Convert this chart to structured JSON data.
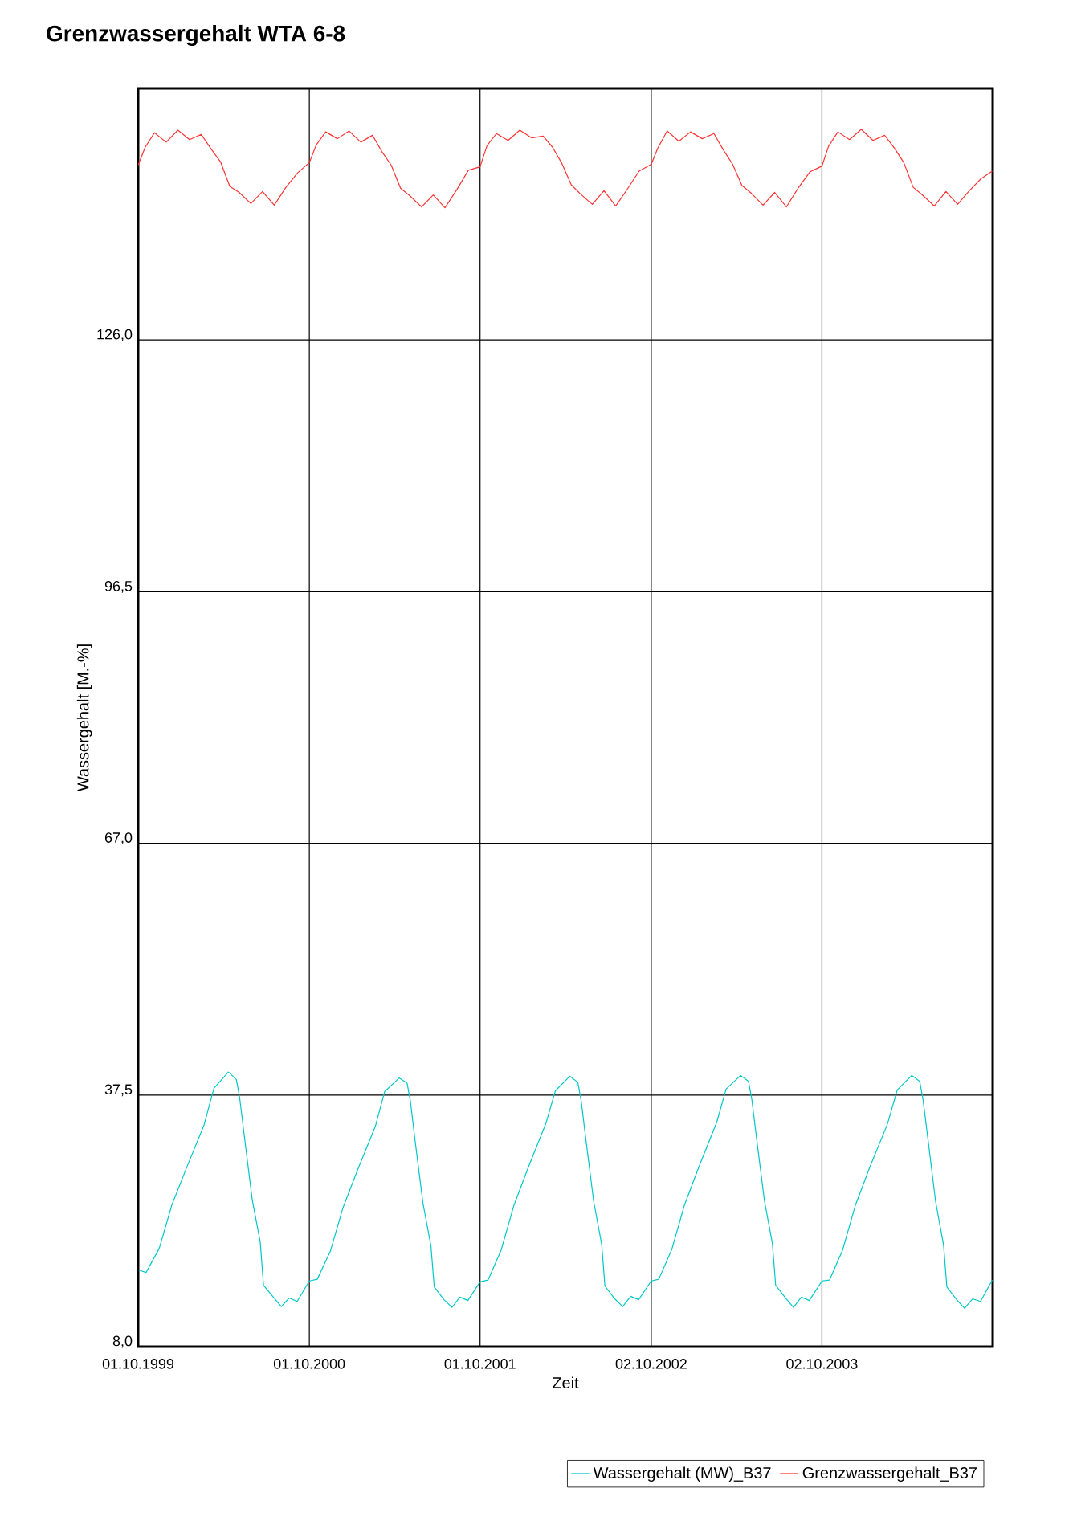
{
  "chart_data": {
    "type": "line",
    "title": "Grenzwassergehalt WTA 6-8",
    "xlabel": "Zeit",
    "ylabel": "Wassergehalt [M.-%]",
    "xlim": [
      "1999-10-01",
      "2004-10-01"
    ],
    "xticks": [
      {
        "value": "1999-10-01",
        "label": "01.10.1999"
      },
      {
        "value": "2000-10-01",
        "label": "01.10.2000"
      },
      {
        "value": "2001-10-01",
        "label": "01.10.2001"
      },
      {
        "value": "2002-10-02",
        "label": "02.10.2002"
      },
      {
        "value": "2003-10-02",
        "label": "02.10.2003"
      }
    ],
    "ylim": [
      8,
      155.5
    ],
    "yticks": [
      {
        "value": 8,
        "label": "8,0"
      },
      {
        "value": 37.5,
        "label": "37,5"
      },
      {
        "value": 67,
        "label": "67,0"
      },
      {
        "value": 96.5,
        "label": "96,5"
      },
      {
        "value": 126,
        "label": "126,0"
      }
    ],
    "grid": true,
    "legend": "bottom right",
    "marker": "none",
    "line_style": "solid",
    "series": [
      {
        "name": "Wassergehalt (MW)_B37",
        "color": "#00c8c8",
        "x": [
          "1999-10-01",
          "1999-10-18",
          "1999-11-15",
          "1999-12-12",
          "2000-01-12",
          "2000-02-19",
          "2000-03-11",
          "2000-04-11",
          "2000-04-28",
          "2000-05-05",
          "2000-05-15",
          "2000-06-01",
          "2000-06-18",
          "2000-06-25",
          "2000-07-16",
          "2000-08-02",
          "2000-08-19",
          "2000-09-05",
          "2000-10-01",
          "2000-10-18",
          "2000-11-15",
          "2000-12-12",
          "2001-01-12",
          "2001-02-19",
          "2001-03-11",
          "2001-04-11",
          "2001-04-28",
          "2001-05-05",
          "2001-05-15",
          "2001-06-01",
          "2001-06-18",
          "2001-06-25",
          "2001-07-16",
          "2001-08-02",
          "2001-08-19",
          "2001-09-05",
          "2001-10-01",
          "2001-10-18",
          "2001-11-15",
          "2001-12-12",
          "2002-01-12",
          "2002-02-19",
          "2002-03-11",
          "2002-04-11",
          "2002-04-28",
          "2002-05-05",
          "2002-05-15",
          "2002-06-01",
          "2002-06-18",
          "2002-06-25",
          "2002-07-16",
          "2002-08-02",
          "2002-08-19",
          "2002-09-05",
          "2002-10-02",
          "2002-10-18",
          "2002-11-15",
          "2002-12-12",
          "2003-01-12",
          "2003-02-19",
          "2003-03-11",
          "2003-04-11",
          "2003-04-28",
          "2003-05-05",
          "2003-05-15",
          "2003-06-01",
          "2003-06-18",
          "2003-06-25",
          "2003-07-16",
          "2003-08-02",
          "2003-08-19",
          "2003-09-05",
          "2003-10-02",
          "2003-10-18",
          "2003-11-15",
          "2003-12-12",
          "2004-01-12",
          "2004-02-19",
          "2004-03-11",
          "2004-04-11",
          "2004-04-28",
          "2004-05-05",
          "2004-05-15",
          "2004-06-01",
          "2004-06-18",
          "2004-06-25",
          "2004-07-16",
          "2004-08-02",
          "2004-08-19",
          "2004-09-05",
          "2004-09-30"
        ],
        "values": [
          17.0,
          16.7,
          19.5,
          24.6,
          28.9,
          34.0,
          38.3,
          40.2,
          39.3,
          37.2,
          32.7,
          25.2,
          20.3,
          15.2,
          13.8,
          12.7,
          13.7,
          13.3,
          15.7,
          15.9,
          19.2,
          24.3,
          28.7,
          33.8,
          37.9,
          39.5,
          38.9,
          36.8,
          32.2,
          24.8,
          19.8,
          15.0,
          13.5,
          12.6,
          13.8,
          13.4,
          15.6,
          15.8,
          19.3,
          24.5,
          29.0,
          34.2,
          38.0,
          39.7,
          39.0,
          36.9,
          32.4,
          25.0,
          20.0,
          15.1,
          13.6,
          12.7,
          13.9,
          13.5,
          15.7,
          15.9,
          19.4,
          24.6,
          29.1,
          34.3,
          38.2,
          39.8,
          39.1,
          37.0,
          32.5,
          25.1,
          20.1,
          15.2,
          13.7,
          12.6,
          13.8,
          13.4,
          15.7,
          15.8,
          19.3,
          24.5,
          29.0,
          34.1,
          38.1,
          39.8,
          39.1,
          37.0,
          32.6,
          25.0,
          19.9,
          15.0,
          13.5,
          12.5,
          13.6,
          13.3,
          15.8
        ]
      },
      {
        "name": "Grenzwassergehalt_B37",
        "color": "#ff3333",
        "x": [
          "1999-10-01",
          "1999-10-16",
          "1999-11-05",
          "1999-11-30",
          "1999-12-25",
          "2000-01-19",
          "2000-02-13",
          "2000-03-05",
          "2000-03-25",
          "2000-04-14",
          "2000-05-04",
          "2000-05-29",
          "2000-06-23",
          "2000-07-18",
          "2000-08-12",
          "2000-09-06",
          "2000-10-01",
          "2000-10-16",
          "2000-11-05",
          "2000-11-30",
          "2000-12-25",
          "2001-01-19",
          "2001-02-13",
          "2001-03-05",
          "2001-03-25",
          "2001-04-14",
          "2001-05-04",
          "2001-05-29",
          "2001-06-23",
          "2001-07-18",
          "2001-08-12",
          "2001-09-06",
          "2001-10-01",
          "2001-10-16",
          "2001-11-05",
          "2001-11-30",
          "2001-12-25",
          "2002-01-19",
          "2002-02-13",
          "2002-03-05",
          "2002-03-25",
          "2002-04-14",
          "2002-05-04",
          "2002-05-29",
          "2002-06-23",
          "2002-07-18",
          "2002-08-12",
          "2002-09-06",
          "2002-10-02",
          "2002-10-16",
          "2002-11-05",
          "2002-11-30",
          "2002-12-25",
          "2003-01-19",
          "2003-02-13",
          "2003-03-05",
          "2003-03-25",
          "2003-04-14",
          "2003-05-04",
          "2003-05-29",
          "2003-06-23",
          "2003-07-18",
          "2003-08-12",
          "2003-09-06",
          "2003-10-02",
          "2003-10-16",
          "2003-11-05",
          "2003-11-30",
          "2003-12-25",
          "2004-01-19",
          "2004-02-13",
          "2004-03-05",
          "2004-03-25",
          "2004-04-14",
          "2004-05-04",
          "2004-05-29",
          "2004-06-23",
          "2004-07-18",
          "2004-08-12",
          "2004-09-06",
          "2004-09-30"
        ],
        "values": [
          146.5,
          148.6,
          150.3,
          149.2,
          150.6,
          149.5,
          150.1,
          148.4,
          146.9,
          144.0,
          143.3,
          142.0,
          143.4,
          141.8,
          143.9,
          145.6,
          146.8,
          148.9,
          150.4,
          149.6,
          150.5,
          149.2,
          150.0,
          148.1,
          146.5,
          143.8,
          142.9,
          141.6,
          143.0,
          141.5,
          143.6,
          145.9,
          146.3,
          148.8,
          150.2,
          149.4,
          150.6,
          149.7,
          149.9,
          148.6,
          146.7,
          144.2,
          143.1,
          141.9,
          143.5,
          141.7,
          143.7,
          145.8,
          146.6,
          148.5,
          150.5,
          149.3,
          150.4,
          149.6,
          150.2,
          148.3,
          146.6,
          144.1,
          143.2,
          141.8,
          143.3,
          141.6,
          143.8,
          145.7,
          146.4,
          148.7,
          150.4,
          149.5,
          150.7,
          149.4,
          150.0,
          148.5,
          146.8,
          143.9,
          143.0,
          141.7,
          143.4,
          141.9,
          143.5,
          144.9,
          145.8
        ]
      }
    ]
  }
}
